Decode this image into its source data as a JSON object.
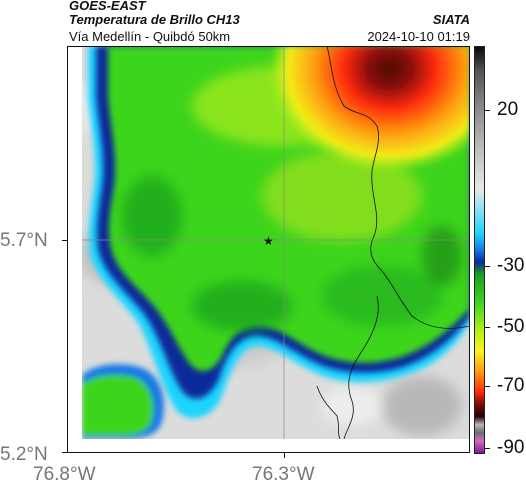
{
  "header": {
    "satellite": "GOES-EAST",
    "product": "Temperatura de Brillo CH13",
    "region": "Vía Medellín - Quibdó 50km",
    "brand": "SIATA",
    "timestamp": "2024-10-10 01:19"
  },
  "map": {
    "lat_ticks": [
      "5.7°N",
      "5.2°N"
    ],
    "lon_ticks": [
      "76.8°W",
      "76.3°W"
    ],
    "marker": "star"
  },
  "colorbar": {
    "ticks": [
      "20",
      "-30",
      "-50",
      "-70",
      "-90"
    ]
  },
  "colors": {
    "cold_core": "#6e0f0b",
    "warm": "#ff2a0a",
    "mid": "#3ed41e",
    "edge": "#0b2a9a",
    "cyan": "#1fd4ff",
    "clear_sky": "#e4e4e4"
  }
}
